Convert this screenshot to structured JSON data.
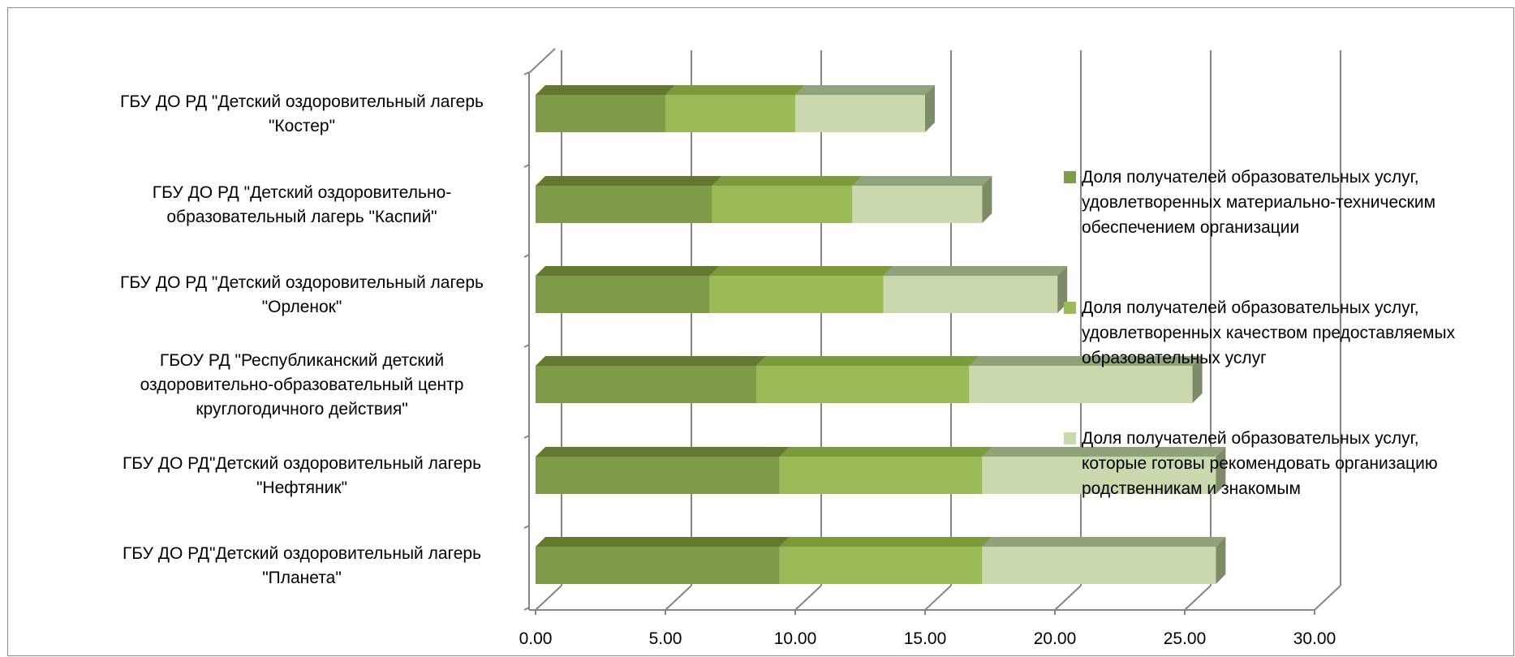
{
  "chart_data": {
    "type": "bar",
    "orientation": "horizontal",
    "stacked": true,
    "three_d": true,
    "categories": [
      [
        "ГБУ ДО РД \"Детский оздоровительный лагерь",
        "\"Костер\""
      ],
      [
        "ГБУ ДО РД \"Детский оздоровительно-",
        "образовательный лагерь \"Каспий\""
      ],
      [
        "ГБУ ДО РД \"Детский оздоровительный лагерь",
        "\"Орленок\""
      ],
      [
        "ГБОУ РД \"Республиканский детский",
        "оздоровительно-образовательный центр",
        "круглогодичного действия\""
      ],
      [
        "ГБУ ДО РД\"Детский оздоровительный лагерь",
        "\"Нефтяник\""
      ],
      [
        "ГБУ ДО РД\"Детский оздоровительный лагерь",
        "\"Планета\""
      ]
    ],
    "series": [
      {
        "name": [
          "Доля получателей образовательных услуг,",
          "удовлетворенных материально-техническим",
          "обеспечением организации"
        ],
        "color": "#7f9a48",
        "top_color": "#64792f",
        "values": [
          5.0,
          6.8,
          6.7,
          8.5,
          9.4,
          9.4
        ]
      },
      {
        "name": [
          "Доля получателей образовательных услуг,",
          "удовлетворенных качеством предоставляемых",
          "образовательных услуг"
        ],
        "color": "#9bbb59",
        "top_color": "#7a9a3c",
        "values": [
          5.0,
          5.4,
          6.7,
          8.2,
          7.8,
          7.8
        ]
      },
      {
        "name": [
          "Доля получателей образовательных услуг,",
          "которые готовы рекомендовать организацию",
          "родственникам и знакомым"
        ],
        "color": "#c9d9ad",
        "top_color": "#8fa27a",
        "values": [
          5.0,
          5.0,
          6.7,
          8.6,
          9.0,
          9.0
        ]
      }
    ],
    "xlim": [
      0,
      30
    ],
    "xticks": [
      "0.00",
      "5.00",
      "10.00",
      "15.00",
      "20.00",
      "25.00",
      "30.00"
    ],
    "grid": true,
    "legend_position": "right"
  }
}
